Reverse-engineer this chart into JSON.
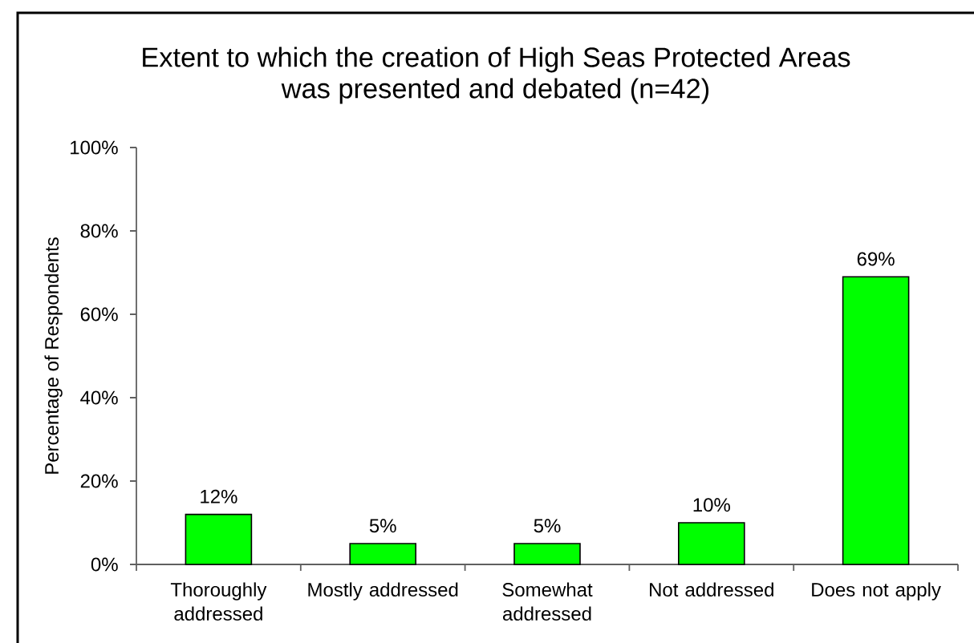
{
  "chart_data": {
    "type": "bar",
    "title": "Extent to which the creation of High Seas Protected Areas was presented and debated (n=42)",
    "ylabel": "Percentage of Respondents",
    "categories": [
      "Thoroughly addressed",
      "Mostly addressed",
      "Somewhat addressed",
      "Not addressed",
      "Does not apply"
    ],
    "values": [
      12,
      5,
      5,
      10,
      69
    ],
    "value_labels": [
      "12%",
      "5%",
      "5%",
      "10%",
      "69%"
    ],
    "color": "#00ff00",
    "ylim": [
      0,
      100
    ],
    "yticks": [
      {
        "value": 0,
        "label": "0%"
      },
      {
        "value": 20,
        "label": "20%"
      },
      {
        "value": 40,
        "label": "40%"
      },
      {
        "value": 60,
        "label": "60%"
      },
      {
        "value": 80,
        "label": "80%"
      },
      {
        "value": 100,
        "label": "100%"
      }
    ]
  }
}
